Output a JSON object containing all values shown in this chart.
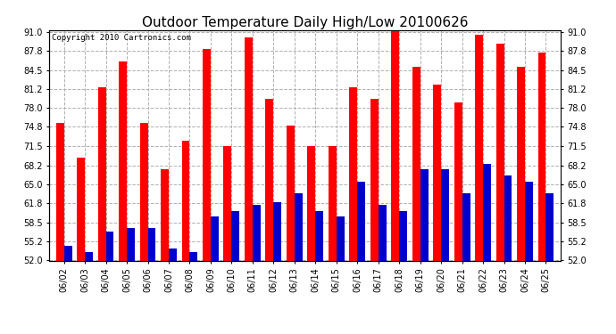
{
  "title": "Outdoor Temperature Daily High/Low 20100626",
  "copyright": "Copyright 2010 Cartronics.com",
  "dates": [
    "06/02",
    "06/03",
    "06/04",
    "06/05",
    "06/06",
    "06/07",
    "06/08",
    "06/09",
    "06/10",
    "06/11",
    "06/12",
    "06/13",
    "06/14",
    "06/15",
    "06/16",
    "06/17",
    "06/18",
    "06/19",
    "06/20",
    "06/21",
    "06/22",
    "06/23",
    "06/24",
    "06/25"
  ],
  "highs": [
    75.5,
    69.5,
    81.5,
    86.0,
    75.5,
    67.5,
    72.5,
    88.0,
    71.5,
    90.0,
    79.5,
    75.0,
    71.5,
    71.5,
    81.5,
    79.5,
    91.5,
    85.0,
    82.0,
    79.0,
    90.5,
    89.0,
    85.0,
    87.5
  ],
  "lows": [
    54.5,
    53.5,
    57.0,
    57.5,
    57.5,
    54.0,
    53.5,
    59.5,
    60.5,
    61.5,
    62.0,
    63.5,
    60.5,
    59.5,
    65.5,
    61.5,
    60.5,
    67.5,
    67.5,
    63.5,
    68.5,
    66.5,
    65.5,
    63.5
  ],
  "high_color": "#ff0000",
  "low_color": "#0000cc",
  "bg_color": "#ffffff",
  "plot_bg_color": "#ffffff",
  "grid_color": "#b0b0b0",
  "ylim_min": 52.0,
  "ylim_max": 91.0,
  "yticks": [
    52.0,
    55.2,
    58.5,
    61.8,
    65.0,
    68.2,
    71.5,
    74.8,
    78.0,
    81.2,
    84.5,
    87.8,
    91.0
  ],
  "title_fontsize": 11,
  "tick_fontsize": 7,
  "copyright_fontsize": 6.5,
  "bar_width": 0.38
}
